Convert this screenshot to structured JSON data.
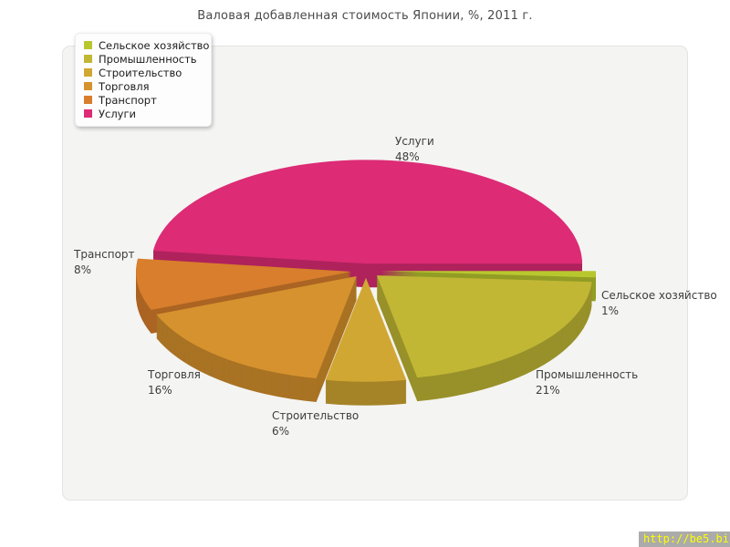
{
  "chart_data": {
    "type": "pie",
    "style": "3d-exploded",
    "title": "Валовая добавленная стоимость Японии, %, 2011 г.",
    "legend_position": "top-left",
    "total": 100,
    "slices": [
      {
        "key": "agriculture",
        "label": "Сельское хозяйство",
        "value": 1,
        "percent_label": "1%",
        "color": "#b9c72f"
      },
      {
        "key": "industry",
        "label": "Промышленность",
        "value": 21,
        "percent_label": "21%",
        "color": "#c1b735"
      },
      {
        "key": "construction",
        "label": "Строительство",
        "value": 6,
        "percent_label": "6%",
        "color": "#d1a733"
      },
      {
        "key": "trade",
        "label": "Торговля",
        "value": 16,
        "percent_label": "16%",
        "color": "#d6922e"
      },
      {
        "key": "transport",
        "label": "Транспорт",
        "value": 8,
        "percent_label": "8%",
        "color": "#d87e2c"
      },
      {
        "key": "services",
        "label": "Услуги",
        "value": 48,
        "percent_label": "48%",
        "color": "#dd2b75"
      }
    ]
  },
  "panel": {
    "background": "#f4f4f2",
    "border_color": "#e3e3e1"
  },
  "watermark": {
    "text": "http://be5.biz/",
    "background": "#ababab",
    "text_color": "#ffff00"
  }
}
